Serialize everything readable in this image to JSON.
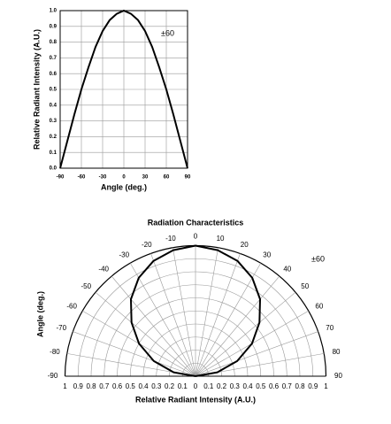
{
  "chart_data": [
    {
      "type": "line",
      "xlabel": "Angle (deg.)",
      "ylabel": "Relative Radiant Intensity (A.U.)",
      "annotation": "±60",
      "x": [
        -90,
        -80,
        -70,
        -60,
        -50,
        -40,
        -30,
        -20,
        -10,
        0,
        10,
        20,
        30,
        40,
        50,
        60,
        70,
        80,
        90
      ],
      "series": [
        {
          "color": "#000000",
          "values": [
            0,
            0.17,
            0.34,
            0.5,
            0.64,
            0.77,
            0.87,
            0.94,
            0.98,
            1,
            0.98,
            0.94,
            0.87,
            0.77,
            0.64,
            0.5,
            0.34,
            0.17,
            0
          ]
        }
      ],
      "xlim": [
        -90,
        90
      ],
      "xticks": [
        -90,
        -60,
        -30,
        0,
        30,
        60,
        90
      ],
      "ylim": [
        0,
        1
      ],
      "yticks": [
        {
          "value": 0,
          "label": "0.0"
        },
        0.1,
        0.2,
        0.3,
        0.4,
        0.5,
        0.6,
        0.7,
        0.8,
        0.9,
        {
          "value": 1,
          "label": "1.0"
        }
      ],
      "grid": true
    },
    {
      "type": "polar",
      "title": "Radiation Characteristics",
      "ylabel": "Angle (deg.)",
      "xlabel": "Relative Radiant Intensity (A.U.)",
      "annotation": "±60",
      "theta": [
        -90,
        -80,
        -70,
        -60,
        -50,
        -40,
        -30,
        -20,
        -10,
        0,
        10,
        20,
        30,
        40,
        50,
        60,
        70,
        80,
        90
      ],
      "r": [
        0,
        0.17,
        0.34,
        0.5,
        0.64,
        0.77,
        0.87,
        0.94,
        0.98,
        1,
        0.98,
        0.94,
        0.87,
        0.77,
        0.64,
        0.5,
        0.34,
        0.17,
        0
      ],
      "color": "#000000",
      "rlim": [
        0,
        1
      ],
      "rticks": [
        0,
        0.1,
        0.2,
        0.3,
        0.4,
        0.5,
        0.6,
        0.7,
        0.8,
        0.9,
        1
      ],
      "thetalim": [
        -90,
        90
      ],
      "thetaticks": [
        -90,
        -80,
        -70,
        -60,
        -50,
        -40,
        -30,
        -20,
        -10,
        0,
        10,
        20,
        30,
        40,
        50,
        60,
        70,
        80,
        90
      ],
      "grid": true
    }
  ]
}
